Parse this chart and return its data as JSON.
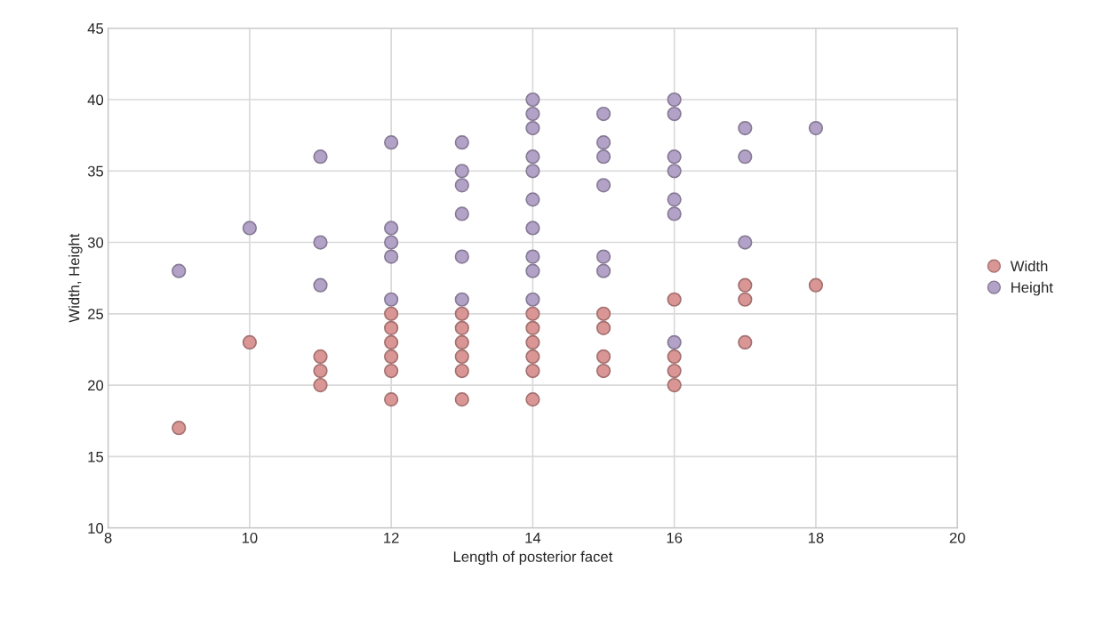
{
  "chart_data": {
    "type": "scatter",
    "xlabel": "Length of posterior facet",
    "ylabel": "Width, Height",
    "xlim": [
      8,
      20
    ],
    "xticks": [
      8,
      10,
      12,
      14,
      16,
      18,
      20
    ],
    "ylim": [
      10,
      45
    ],
    "yticks": [
      10,
      15,
      20,
      25,
      30,
      35,
      40,
      45
    ],
    "grid": true,
    "legend": "right",
    "marker": "circle",
    "series": [
      {
        "name": "Width",
        "color": "#d99694",
        "x": [
          9,
          10,
          11,
          11,
          11,
          12,
          12,
          12,
          12,
          12,
          12,
          13,
          13,
          13,
          13,
          13,
          13,
          14,
          14,
          14,
          14,
          14,
          14,
          15,
          15,
          15,
          15,
          16,
          16,
          16,
          16,
          17,
          17,
          17,
          18
        ],
        "values": [
          17,
          23,
          22,
          21,
          20,
          25,
          24,
          23,
          22,
          21,
          19,
          25,
          24,
          23,
          22,
          21,
          19,
          25,
          24,
          23,
          22,
          21,
          19,
          25,
          24,
          22,
          21,
          26,
          22,
          21,
          20,
          27,
          26,
          23,
          27
        ]
      },
      {
        "name": "Height",
        "color": "#b3a2c7",
        "x": [
          9,
          10,
          11,
          11,
          11,
          12,
          12,
          12,
          12,
          12,
          13,
          13,
          13,
          13,
          13,
          13,
          14,
          14,
          14,
          14,
          14,
          14,
          14,
          14,
          14,
          14,
          15,
          15,
          15,
          15,
          15,
          15,
          16,
          16,
          16,
          16,
          16,
          16,
          16,
          17,
          17,
          17,
          18
        ],
        "values": [
          28,
          31,
          36,
          30,
          27,
          37,
          31,
          30,
          29,
          26,
          37,
          35,
          34,
          32,
          29,
          26,
          40,
          39,
          38,
          36,
          35,
          33,
          31,
          29,
          28,
          26,
          39,
          37,
          36,
          34,
          29,
          28,
          40,
          39,
          36,
          35,
          33,
          32,
          23,
          38,
          36,
          30,
          38
        ]
      }
    ]
  }
}
